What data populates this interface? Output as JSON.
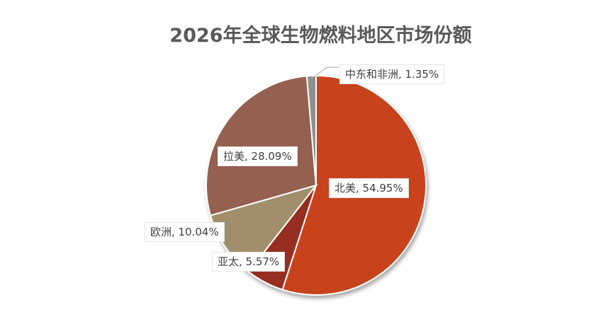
{
  "chart_data": {
    "type": "pie",
    "title": "2026年全球生物燃料地区市场份额",
    "unit": "%",
    "slices": [
      {
        "name": "北美",
        "value": 54.95,
        "color": "#C8431B",
        "label": "北美, 54.95%"
      },
      {
        "name": "亚太",
        "value": 5.57,
        "color": "#972E23",
        "label": "亚太, 5.57%"
      },
      {
        "name": "欧洲",
        "value": 10.04,
        "color": "#A18F6C",
        "label": "欧洲, 10.04%"
      },
      {
        "name": "拉美",
        "value": 28.09,
        "color": "#94614F",
        "label": "拉美, 28.09%"
      },
      {
        "name": "中东和非洲",
        "value": 1.35,
        "color": "#8F8F8F",
        "label": "中东和非洲, 1.35%"
      }
    ]
  }
}
